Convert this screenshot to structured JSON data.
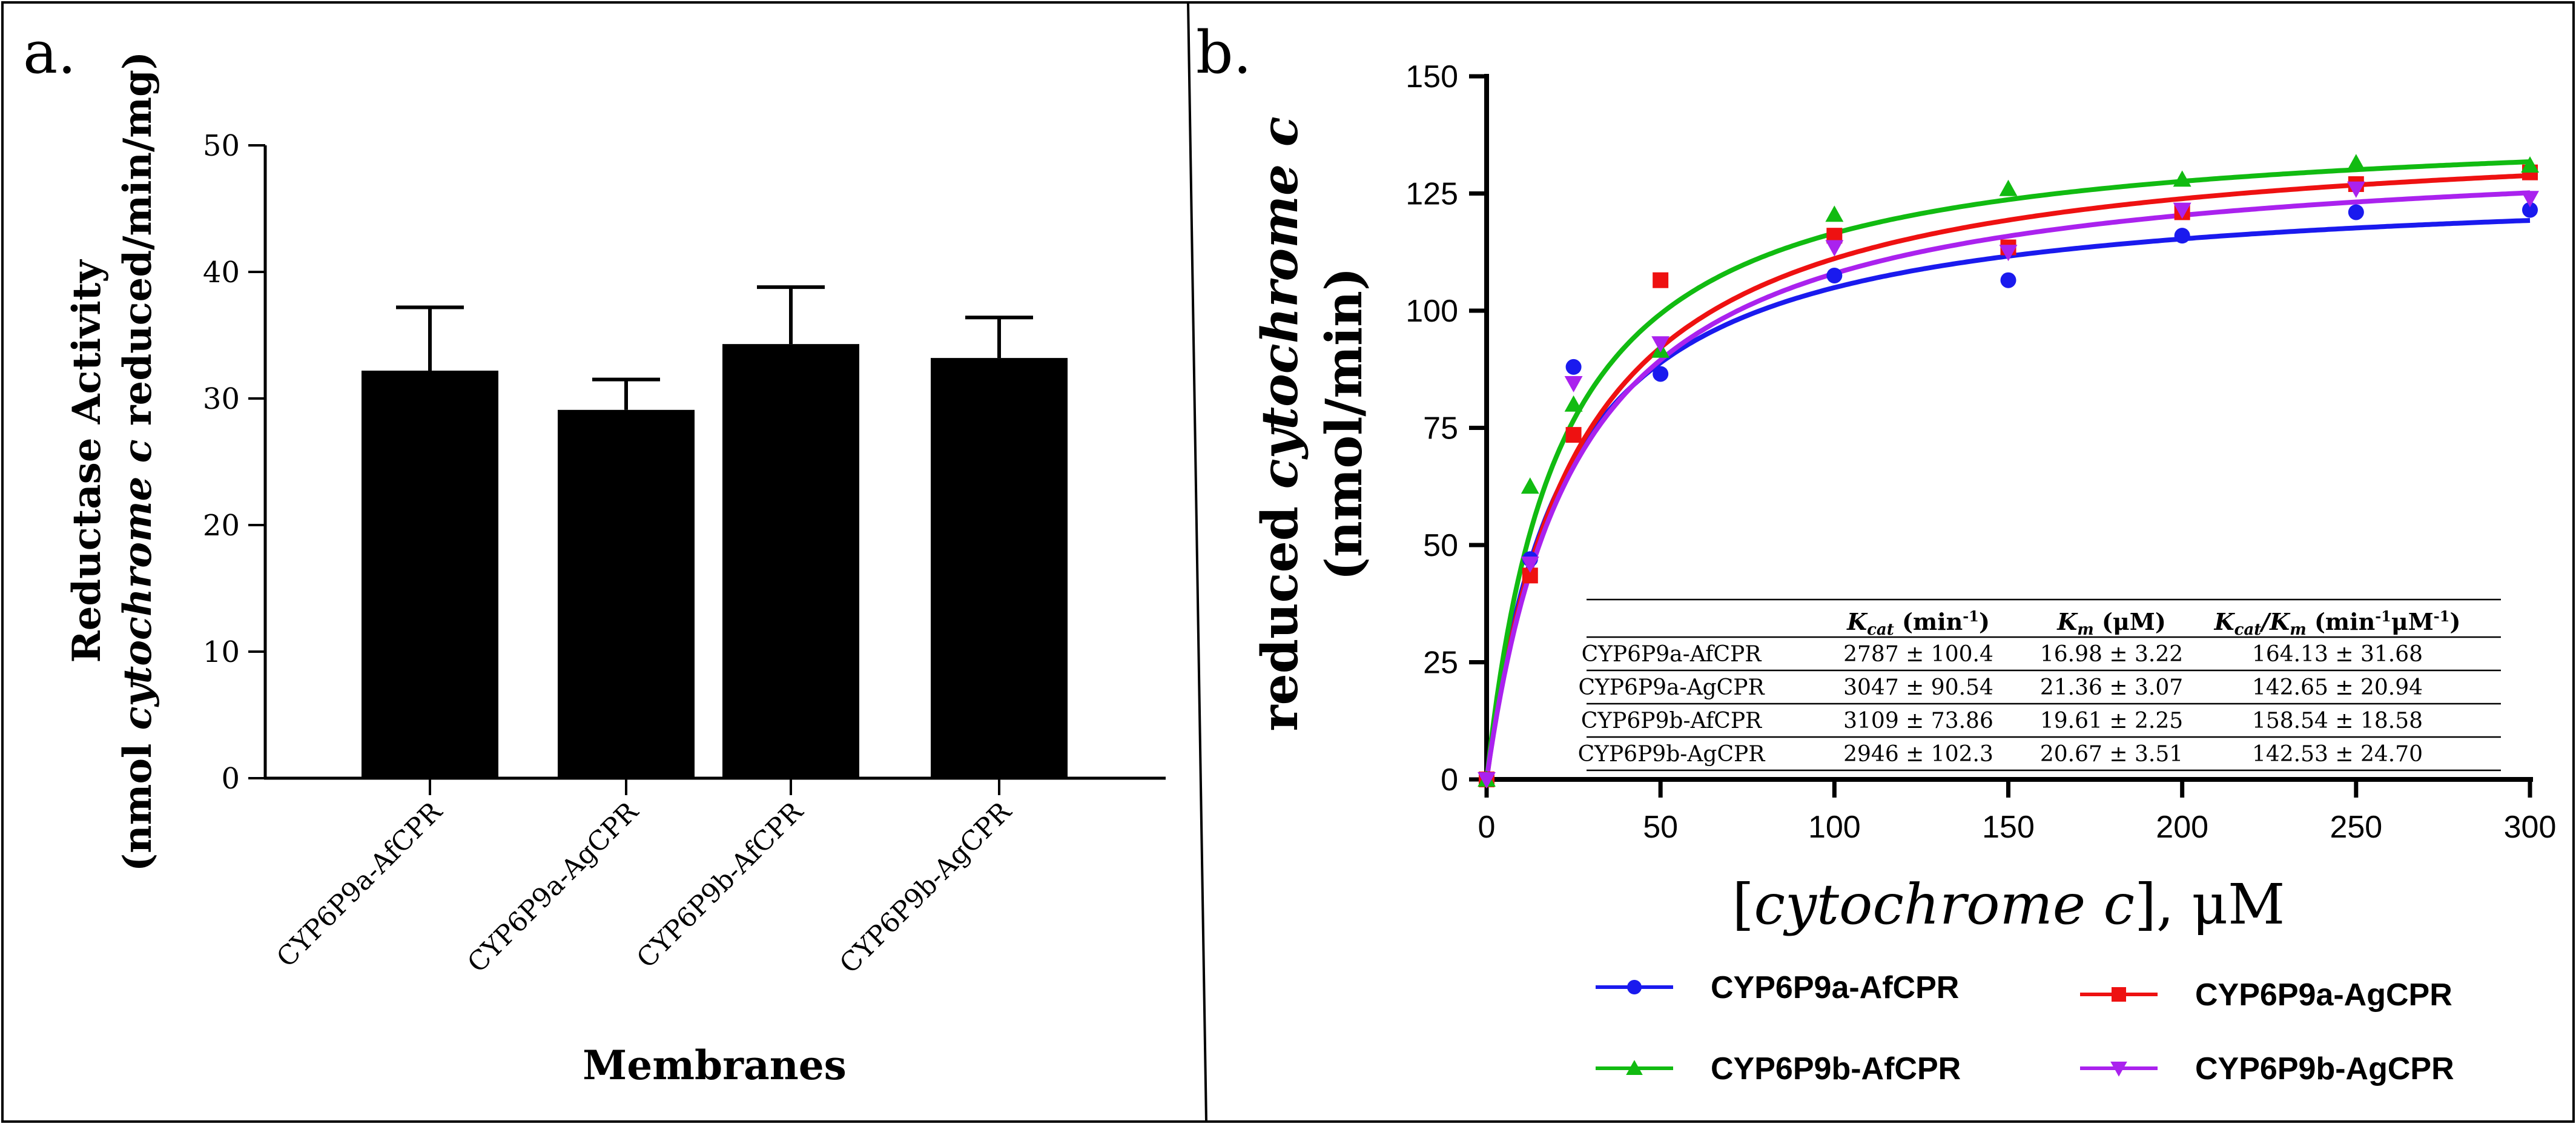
{
  "panel_a": {
    "label": "a.",
    "y_title_line1": "Reductase Activity",
    "y_title_line2_parts": [
      "(nmol ",
      "cytochrome c",
      " reduced/min/mg)"
    ],
    "x_title": "Membranes"
  },
  "panel_b": {
    "label": "b.",
    "y_title_line1_parts": [
      "reduced ",
      "cytochrome c"
    ],
    "y_title_line2": "(nmol/min)",
    "x_title_parts": [
      "[",
      "cytochrome c",
      "], μM"
    ]
  },
  "table": {
    "headers": [
      {
        "main": "",
        "sub": "",
        "sup": ""
      },
      {
        "main": "K",
        "sub": "cat",
        "rest": " (min",
        "sup": "-1",
        "tail": ")"
      },
      {
        "main": "K",
        "sub": "m",
        "rest": " (μM)",
        "sup": "",
        "tail": ""
      },
      {
        "main": "K",
        "sub": "cat",
        "mid": "/K",
        "sub2": "m",
        "rest": " (min",
        "sup": "-1",
        "rest2": "μM",
        "sup2": "-1",
        "tail": ")"
      }
    ],
    "rows": [
      [
        "CYP6P9a-AfCPR",
        "2787 ± 100.4",
        "16.98 ± 3.22",
        "164.13 ± 31.68"
      ],
      [
        "CYP6P9a-AgCPR",
        "3047 ± 90.54",
        "21.36 ± 3.07",
        "142.65 ± 20.94"
      ],
      [
        "CYP6P9b-AfCPR",
        "3109 ± 73.86",
        "19.61 ± 2.25",
        "158.54 ± 18.58"
      ],
      [
        "CYP6P9b-AgCPR",
        "2946 ± 102.3",
        "20.67 ± 3.51",
        "142.53 ± 24.70"
      ]
    ]
  },
  "chart_data": [
    {
      "type": "bar",
      "title": "",
      "xlabel": "Membranes",
      "ylabel": "Reductase Activity (nmol cytochrome c reduced/min/mg)",
      "categories": [
        "CYP6P9a-AfCPR",
        "CYP6P9a-AgCPR",
        "CYP6P9b-AfCPR",
        "CYP6P9b-AgCPR"
      ],
      "values": [
        32.2,
        29.1,
        34.3,
        33.2
      ],
      "error_upper": [
        37.2,
        31.5,
        38.8,
        36.4
      ],
      "ylim": [
        0,
        50
      ],
      "yticks": [
        0,
        10,
        20,
        30,
        40,
        50
      ],
      "bar_color": "#000000"
    },
    {
      "type": "scatter",
      "title": "",
      "xlabel": "[cytochrome c], μM",
      "ylabel": "reduced cytochrome c (nmol/min)",
      "xlim": [
        0,
        300
      ],
      "ylim": [
        0,
        150
      ],
      "xticks": [
        0,
        50,
        100,
        150,
        200,
        250,
        300
      ],
      "yticks": [
        0,
        25,
        50,
        75,
        100,
        125,
        150
      ],
      "legend_position": "bottom",
      "series": [
        {
          "name": "CYP6P9a-AfCPR",
          "color": "#1a1aee",
          "marker": "circle",
          "x": [
            0,
            12.5,
            25,
            50,
            100,
            150,
            200,
            250,
            300
          ],
          "y": [
            0,
            47,
            88,
            86.5,
            107.5,
            106.5,
            116,
            121,
            121.5
          ],
          "fit_vmax": 128,
          "fit_km": 22
        },
        {
          "name": "CYP6P9a-AgCPR",
          "color": "#ee1111",
          "marker": "square",
          "x": [
            0,
            12.5,
            25,
            50,
            100,
            150,
            200,
            250,
            300
          ],
          "y": [
            0,
            43.5,
            73.5,
            106.5,
            116,
            113.5,
            121,
            127,
            129.5
          ],
          "fit_vmax": 140,
          "fit_km": 26
        },
        {
          "name": "CYP6P9b-AfCPR",
          "color": "#11bb11",
          "marker": "triangle-up",
          "x": [
            0,
            12.5,
            25,
            50,
            100,
            150,
            200,
            250,
            300
          ],
          "y": [
            0,
            62.5,
            80,
            91.5,
            120.5,
            126,
            128,
            131.5,
            131
          ],
          "fit_vmax": 141,
          "fit_km": 21
        },
        {
          "name": "CYP6P9b-AgCPR",
          "color": "#aa22ee",
          "marker": "triangle-down",
          "x": [
            0,
            12.5,
            25,
            50,
            100,
            150,
            200,
            250,
            300
          ],
          "y": [
            0,
            46,
            84.5,
            93,
            113.5,
            112.5,
            121.5,
            126,
            124
          ],
          "fit_vmax": 136,
          "fit_km": 26
        }
      ]
    }
  ]
}
